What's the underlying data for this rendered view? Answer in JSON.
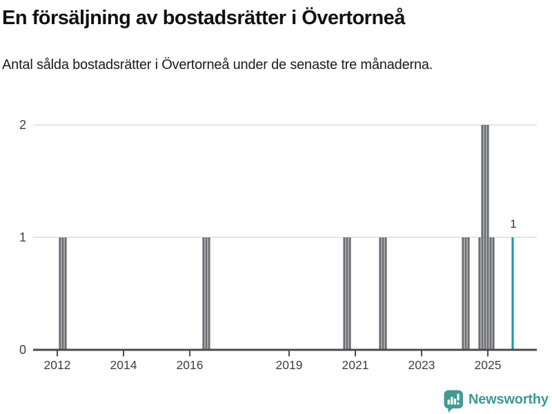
{
  "header": {
    "title": "En försäljning av bostadsrätter i Övertorneå",
    "subtitle": "Antal sålda bostadsrätter i Övertorneå under de senaste tre månaderna."
  },
  "chart_data": {
    "type": "bar",
    "title": "En försäljning av bostadsrätter i Övertorneå",
    "xlabel": "",
    "ylabel": "",
    "ylim": [
      0,
      2
    ],
    "yticks": [
      0,
      1,
      2
    ],
    "grid": "horizontal",
    "legend": "none",
    "xticks": [
      {
        "year": 2012,
        "label": "2012"
      },
      {
        "year": 2014,
        "label": "2014"
      },
      {
        "year": 2016,
        "label": "2016"
      },
      {
        "year": 2019,
        "label": "2019"
      },
      {
        "year": 2021,
        "label": "2021"
      },
      {
        "year": 2023,
        "label": "2023"
      },
      {
        "year": 2025,
        "label": "2025"
      }
    ],
    "bars": [
      {
        "month": "2012-02",
        "value": 1
      },
      {
        "month": "2012-03",
        "value": 1
      },
      {
        "month": "2012-04",
        "value": 1
      },
      {
        "month": "2016-06",
        "value": 1
      },
      {
        "month": "2016-07",
        "value": 1
      },
      {
        "month": "2016-08",
        "value": 1
      },
      {
        "month": "2020-09",
        "value": 1
      },
      {
        "month": "2020-10",
        "value": 1
      },
      {
        "month": "2020-11",
        "value": 1
      },
      {
        "month": "2021-10",
        "value": 1
      },
      {
        "month": "2021-11",
        "value": 1
      },
      {
        "month": "2021-12",
        "value": 1
      },
      {
        "month": "2024-04",
        "value": 1
      },
      {
        "month": "2024-05",
        "value": 1
      },
      {
        "month": "2024-06",
        "value": 1
      },
      {
        "month": "2024-10",
        "value": 1
      },
      {
        "month": "2024-11",
        "value": 2
      },
      {
        "month": "2024-12",
        "value": 2
      },
      {
        "month": "2025-01",
        "value": 2
      },
      {
        "month": "2025-02",
        "value": 1
      },
      {
        "month": "2025-03",
        "value": 1
      },
      {
        "month": "2025-10",
        "value": 1,
        "highlight": true
      }
    ],
    "annotation": {
      "text": "1",
      "month": "2025-10"
    },
    "colors": {
      "bar": "#6a6d71",
      "highlight": "#17a0a0",
      "gridline": "#e5e5e5",
      "axis": "#4a4a4a",
      "tick_label": "#3c4043",
      "annotation": "#333333"
    }
  },
  "footer": {
    "brand": "Newsworthy",
    "logo_icon": "speech-bubble-bar-chart-exclamation",
    "logo_color": "#429a92"
  }
}
